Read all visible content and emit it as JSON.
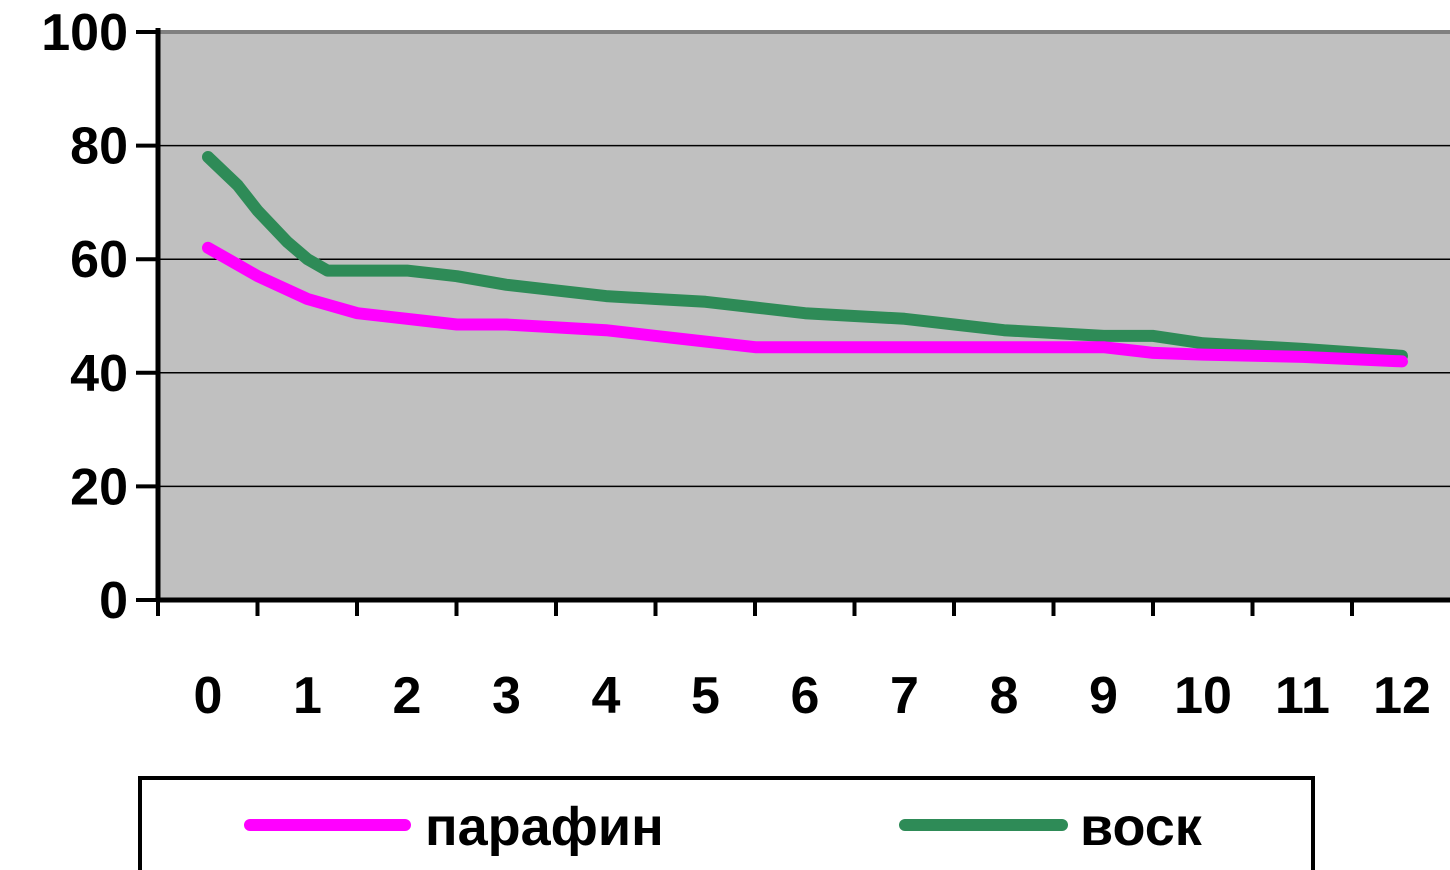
{
  "chart_data": {
    "type": "line",
    "title": "",
    "xlabel": "",
    "ylabel": "",
    "x": [
      0,
      1,
      2,
      3,
      4,
      5,
      6,
      7,
      8,
      9,
      10,
      11,
      12
    ],
    "ylim": [
      0,
      100
    ],
    "yticks": [
      "0",
      "20",
      "40",
      "60",
      "80",
      "100"
    ],
    "xticks": [
      "0",
      "1",
      "2",
      "3",
      "4",
      "5",
      "6",
      "7",
      "8",
      "9",
      "10",
      "11",
      "12"
    ],
    "grid": true,
    "plot_background": "#c0c0c0",
    "legend_position": "bottom",
    "series": [
      {
        "name": "парафин",
        "color": "#ff00ff",
        "points": [
          [
            0,
            62
          ],
          [
            0.5,
            57
          ],
          [
            1,
            53
          ],
          [
            1.5,
            50.5
          ],
          [
            2,
            49.5
          ],
          [
            2.5,
            48.5
          ],
          [
            3,
            48.5
          ],
          [
            3.5,
            48
          ],
          [
            4,
            47.5
          ],
          [
            4.5,
            46.5
          ],
          [
            5,
            45.5
          ],
          [
            5.5,
            44.5
          ],
          [
            6,
            44.5
          ],
          [
            7,
            44.5
          ],
          [
            8,
            44.5
          ],
          [
            9,
            44.5
          ],
          [
            9.5,
            43.5
          ],
          [
            10,
            43.2
          ],
          [
            11,
            42.8
          ],
          [
            12,
            42
          ]
        ]
      },
      {
        "name": "воск",
        "color": "#2e8b57",
        "points": [
          [
            0,
            78
          ],
          [
            0.3,
            73
          ],
          [
            0.5,
            68.5
          ],
          [
            0.8,
            63
          ],
          [
            1,
            60
          ],
          [
            1.2,
            58
          ],
          [
            2,
            58
          ],
          [
            2.5,
            57
          ],
          [
            3,
            55.5
          ],
          [
            3.5,
            54.5
          ],
          [
            4,
            53.5
          ],
          [
            4.5,
            53
          ],
          [
            5,
            52.5
          ],
          [
            5.5,
            51.5
          ],
          [
            6,
            50.5
          ],
          [
            7,
            49.5
          ],
          [
            7.5,
            48.5
          ],
          [
            8,
            47.5
          ],
          [
            9,
            46.5
          ],
          [
            9.5,
            46.5
          ],
          [
            10,
            45.2
          ],
          [
            11,
            44.2
          ],
          [
            12,
            43
          ]
        ]
      }
    ]
  }
}
